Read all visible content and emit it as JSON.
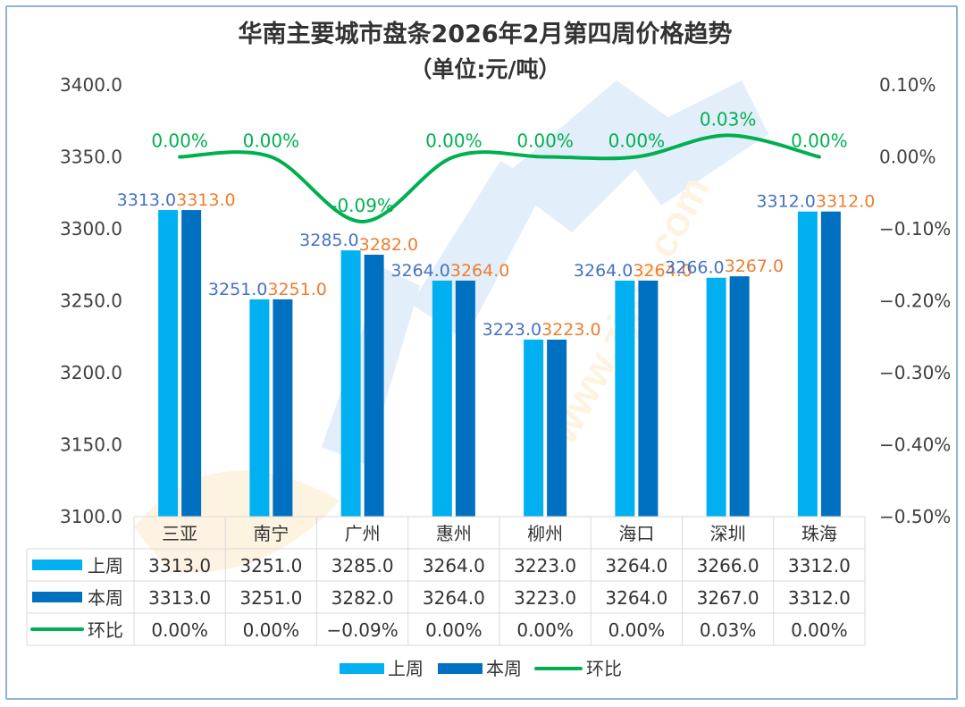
{
  "chart_data": {
    "type": "bar",
    "title": "华南主要城市盘条2026年2月第四周价格趋势",
    "subtitle": "（单位:元/吨）",
    "categories": [
      "三亚",
      "南宁",
      "广州",
      "惠州",
      "柳州",
      "海口",
      "深圳",
      "珠海"
    ],
    "series": [
      {
        "name": "上周",
        "type": "bar",
        "axis": "left",
        "color": "#00b0f0",
        "values": [
          3313.0,
          3251.0,
          3285.0,
          3264.0,
          3223.0,
          3264.0,
          3266.0,
          3312.0
        ],
        "labels": [
          "3313.0",
          "3251.0",
          "3285.0",
          "3264.0",
          "3223.0",
          "3264.0",
          "3266.0",
          "3312.0"
        ]
      },
      {
        "name": "本周",
        "type": "bar",
        "axis": "left",
        "color": "#0070c0",
        "values": [
          3313.0,
          3251.0,
          3282.0,
          3264.0,
          3223.0,
          3264.0,
          3267.0,
          3312.0
        ],
        "labels": [
          "3313.0",
          "3251.0",
          "3282.0",
          "3264.0",
          "3223.0",
          "3264.0",
          "3267.0",
          "3312.0"
        ]
      },
      {
        "name": "环比",
        "type": "line",
        "axis": "right",
        "color": "#00b050",
        "values": [
          0.0,
          0.0,
          -0.09,
          0.0,
          0.0,
          0.0,
          0.03,
          0.0
        ],
        "labels": [
          "0.00%",
          "0.00%",
          "-0.09%",
          "0.00%",
          "0.00%",
          "0.00%",
          "0.03%",
          "0.00%"
        ]
      }
    ],
    "y_left": {
      "min": 3100,
      "max": 3400,
      "ticks": [
        "3400.0",
        "3350.0",
        "3300.0",
        "3250.0",
        "3200.0",
        "3150.0",
        "3100.0"
      ]
    },
    "y_right": {
      "min": -0.5,
      "max": 0.1,
      "ticks": [
        "0.10%",
        "0.00%",
        "−0.10%",
        "−0.20%",
        "−0.30%",
        "−0.40%",
        "−0.50%"
      ]
    },
    "table_rows": [
      {
        "name": "上周",
        "cells": [
          "3313.0",
          "3251.0",
          "3285.0",
          "3264.0",
          "3223.0",
          "3264.0",
          "3266.0",
          "3312.0"
        ]
      },
      {
        "name": "本周",
        "cells": [
          "3313.0",
          "3251.0",
          "3282.0",
          "3264.0",
          "3223.0",
          "3264.0",
          "3267.0",
          "3312.0"
        ]
      },
      {
        "name": "环比",
        "cells": [
          "0.00%",
          "0.00%",
          "−0.09%",
          "0.00%",
          "0.00%",
          "0.00%",
          "0.03%",
          "0.00%"
        ]
      }
    ],
    "legend": [
      "上周",
      "本周",
      "环比"
    ],
    "legend_position": "bottom",
    "grid": false,
    "watermark": "www.zjtcn.com",
    "colors": {
      "last_week_label": "#4472c4",
      "this_week_label": "#ed7d31"
    }
  }
}
